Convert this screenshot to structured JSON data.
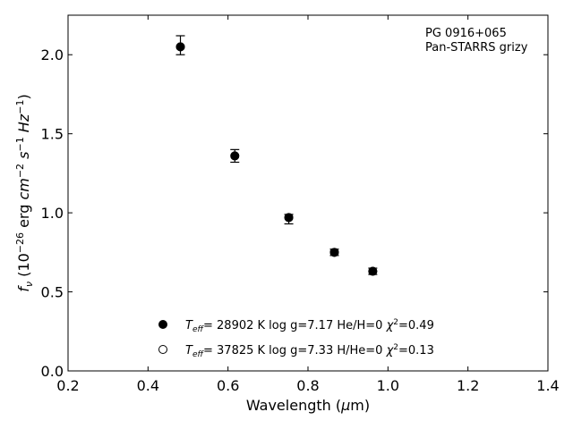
{
  "chart_data": {
    "type": "scatter",
    "title": "",
    "xlabel": "Wavelength (μm)",
    "ylabel": "f_ν (10^−26 erg cm^−2 s^−1 Hz^−1)",
    "xlim": [
      0.2,
      1.4
    ],
    "ylim": [
      0.0,
      2.25
    ],
    "xticks": [
      0.2,
      0.4,
      0.6,
      0.8,
      1.0,
      1.2,
      1.4
    ],
    "xtick_labels": [
      "0.2",
      "0.4",
      "0.6",
      "0.8",
      "1.0",
      "1.2",
      "1.4"
    ],
    "yticks": [
      0.0,
      0.5,
      1.0,
      1.5,
      2.0
    ],
    "ytick_labels": [
      "0.0",
      "0.5",
      "1.0",
      "1.5",
      "2.0"
    ],
    "grid": false,
    "annotation": [
      "PG 0916+065",
      "Pan-STARRS grizy"
    ],
    "annotation_placement": "top-right",
    "legend_placement": "bottom-center",
    "series": [
      {
        "name": "T_eff= 28902 K  log g=7.17  He/H=0  χ²=0.49",
        "marker": "filled-circle",
        "points": [
          {
            "x": 0.481,
            "y": 2.05
          },
          {
            "x": 0.617,
            "y": 1.36
          },
          {
            "x": 0.752,
            "y": 0.97
          },
          {
            "x": 0.866,
            "y": 0.75
          },
          {
            "x": 0.962,
            "y": 0.63
          }
        ]
      },
      {
        "name": "T_eff= 37825 K  log g=7.33  H/He=0  χ²=0.13",
        "marker": "open-circle",
        "points": [
          {
            "x": 0.481,
            "y": 2.05
          },
          {
            "x": 0.617,
            "y": 1.36
          },
          {
            "x": 0.752,
            "y": 0.97
          },
          {
            "x": 0.866,
            "y": 0.75
          },
          {
            "x": 0.962,
            "y": 0.63
          }
        ]
      }
    ],
    "observed": {
      "marker": "error-bar",
      "points": [
        {
          "x": 0.481,
          "y": 2.06,
          "yerr": 0.06
        },
        {
          "x": 0.617,
          "y": 1.36,
          "yerr": 0.04
        },
        {
          "x": 0.752,
          "y": 0.96,
          "yerr": 0.03
        },
        {
          "x": 0.866,
          "y": 0.75,
          "yerr": 0.02
        },
        {
          "x": 0.962,
          "y": 0.63,
          "yerr": 0.02
        }
      ]
    }
  }
}
